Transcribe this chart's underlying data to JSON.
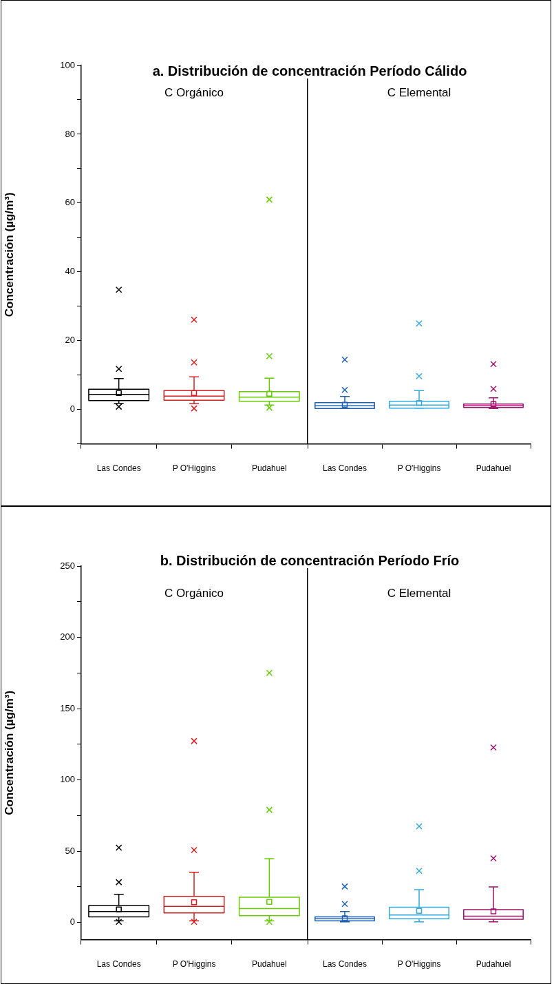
{
  "chart_data": [
    {
      "type": "box",
      "title": "a. Distribución de concentración Período Cálido",
      "ylabel": "Concentración (µg/m³)",
      "annotations": [
        "C Orgánico"
      ],
      "categories": [
        "Las Condes",
        "P O'Higgins",
        "Pudahuel"
      ],
      "colors": [
        "#000000",
        "#d42020",
        "#66cc00"
      ],
      "ylim": [
        -10,
        100
      ],
      "yticks": [
        {
          "value": -10,
          "label": null
        },
        0,
        {
          "value": 10,
          "label": null
        },
        20,
        {
          "value": 30,
          "label": null
        },
        40,
        {
          "value": 50,
          "label": null
        },
        60,
        {
          "value": 70,
          "label": null
        },
        80,
        {
          "value": 90,
          "label": null
        },
        100
      ],
      "grid": false,
      "boxes": [
        {
          "low": 1.8,
          "q1": 2.6,
          "median": 4.4,
          "q3": 5.9,
          "high": 9.0,
          "mean": 4.8,
          "outliers": [
            0.8,
            11.8,
            34.8
          ]
        },
        {
          "low": 1.7,
          "q1": 2.7,
          "median": 3.9,
          "q3": 5.5,
          "high": 9.5,
          "mean": 4.8,
          "outliers": [
            0.3,
            13.7,
            26.1
          ]
        },
        {
          "low": 1.3,
          "q1": 2.4,
          "median": 3.6,
          "q3": 5.2,
          "high": 9.1,
          "mean": 4.6,
          "outliers": [
            0.5,
            15.5,
            61
          ]
        }
      ]
    },
    {
      "type": "box",
      "annotations": [
        "C Elemental"
      ],
      "categories": [
        "Las Condes",
        "P O'Higgins",
        "Pudahuel"
      ],
      "colors": [
        "#1f5fb0",
        "#33aadd",
        "#a0106a"
      ],
      "ylim": [
        -10,
        100
      ],
      "tick_labels": "x",
      "grid": false,
      "boxes": [
        {
          "low": 0.3,
          "q1": 0.3,
          "median": 1.1,
          "q3": 2.0,
          "high": 3.8,
          "mean": 1.4,
          "outliers": [
            5.7,
            14.5
          ]
        },
        {
          "low": 0.4,
          "q1": 0.4,
          "median": 1.3,
          "q3": 2.4,
          "high": 5.5,
          "mean": 1.9,
          "outliers": [
            9.7,
            25.0
          ]
        },
        {
          "low": 0.3,
          "q1": 0.6,
          "median": 1.1,
          "q3": 1.6,
          "high": 3.4,
          "mean": 1.6,
          "outliers": [
            6.0,
            13.2
          ]
        }
      ]
    },
    {
      "type": "box",
      "title": "b. Distribución de concentración Período Frío",
      "ylabel": "Concentración (µg/m³)",
      "annotations": [
        "C Orgánico"
      ],
      "categories": [
        "Las Condes",
        "P O'Higgins",
        "Pudahuel"
      ],
      "colors": [
        "#000000",
        "#d42020",
        "#66cc00"
      ],
      "ylim": [
        -12,
        250
      ],
      "yticks": [
        0,
        {
          "value": 25,
          "label": null
        },
        50,
        {
          "value": 75,
          "label": null
        },
        100,
        {
          "value": 125,
          "label": null
        },
        150,
        {
          "value": 175,
          "label": null
        },
        200,
        {
          "value": 225,
          "label": null
        },
        250
      ],
      "grid": false,
      "boxes": [
        {
          "low": 1.2,
          "q1": 4.0,
          "median": 7.7,
          "q3": 12.0,
          "high": 19.8,
          "mean": 9.2,
          "outliers": [
            0.5,
            28.3,
            52.5
          ]
        },
        {
          "low": 1.2,
          "q1": 6.8,
          "median": 11.3,
          "q3": 18.3,
          "high": 35.3,
          "mean": 14.2,
          "outliers": [
            0.5,
            50.8,
            127.3
          ]
        },
        {
          "low": 1.2,
          "q1": 4.8,
          "median": 9.8,
          "q3": 17.8,
          "high": 44.8,
          "mean": 14.5,
          "outliers": [
            0.5,
            79,
            175
          ]
        }
      ]
    },
    {
      "type": "box",
      "annotations": [
        "C Elemental"
      ],
      "categories": [
        "Las Condes",
        "P O'Higgins",
        "Pudahuel"
      ],
      "colors": [
        "#1f5fb0",
        "#33aadd",
        "#a0106a"
      ],
      "ylim": [
        -12,
        250
      ],
      "tick_labels": "x",
      "grid": false,
      "boxes": [
        {
          "low": 0.5,
          "q1": 1.2,
          "median": 2.6,
          "q3": 4.0,
          "high": 7.7,
          "mean": 3.0,
          "outliers": [
            13,
            25.3
          ]
        },
        {
          "low": 0.5,
          "q1": 2.7,
          "median": 5.3,
          "q3": 10.8,
          "high": 23,
          "mean": 8.2,
          "outliers": [
            36.2,
            67.5
          ]
        },
        {
          "low": 0.5,
          "q1": 2.3,
          "median": 4.5,
          "q3": 9.0,
          "high": 25,
          "mean": 7.8,
          "outliers": [
            45,
            122.8
          ]
        }
      ]
    }
  ]
}
